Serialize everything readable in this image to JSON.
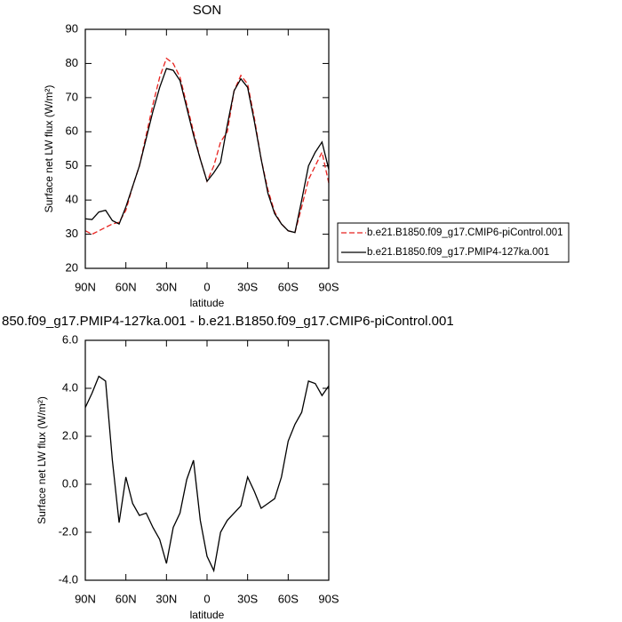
{
  "chart_data": [
    {
      "type": "line",
      "title": "SON",
      "x_label": "latitude",
      "y_label": "Surface net LW flux (W/m²)",
      "x": [
        90,
        85,
        80,
        75,
        70,
        65,
        60,
        55,
        50,
        45,
        40,
        35,
        30,
        25,
        20,
        15,
        10,
        5,
        0,
        -5,
        -10,
        -15,
        -20,
        -25,
        -30,
        -35,
        -40,
        -45,
        -50,
        -55,
        -60,
        -65,
        -70,
        -75,
        -80,
        -85,
        -90
      ],
      "xlim": [
        90,
        -90
      ],
      "xticks": [
        {
          "value": 90,
          "label": "90N"
        },
        {
          "value": 60,
          "label": "60N"
        },
        {
          "value": 30,
          "label": "30N"
        },
        0,
        {
          "value": -30,
          "label": "30S"
        },
        {
          "value": -60,
          "label": "60S"
        },
        {
          "value": -90,
          "label": "90S"
        }
      ],
      "ylim": [
        20,
        90
      ],
      "yticks": [
        20,
        30,
        40,
        50,
        60,
        70,
        80,
        90
      ],
      "legend": "right",
      "series": [
        {
          "name": "b.e21.B1850.f09_g17.CMIP6-piControl.001",
          "color": "#e8221e",
          "dashed": true,
          "values": [
            31,
            30,
            31,
            32,
            33,
            33.5,
            37,
            44,
            50,
            59,
            68,
            76,
            81.5,
            80,
            76,
            68,
            60,
            52,
            45.5,
            50,
            57,
            60,
            72,
            76.5,
            74,
            64,
            52,
            43,
            36.5,
            33,
            31,
            30.5,
            38,
            46,
            50,
            54,
            45
          ]
        },
        {
          "name": "b.e21.B1850.f09_g17.PMIP4-127ka.001",
          "color": "#000000",
          "dashed": false,
          "values": [
            34.5,
            34.3,
            36.5,
            37,
            34,
            33,
            38,
            44,
            50,
            58,
            66,
            73,
            78.5,
            78,
            75,
            67,
            59,
            52,
            45.5,
            48,
            51,
            62,
            72,
            75.5,
            73,
            63,
            52,
            42,
            36,
            33,
            31,
            30.5,
            40,
            50,
            54,
            57,
            49
          ]
        }
      ]
    },
    {
      "type": "line",
      "title": "850.f09_g17.PMIP4-127ka.001 - b.e21.B1850.f09_g17.CMIP6-piControl.001",
      "x_label": "latitude",
      "y_label": "Surface net LW flux (W/m²)",
      "x": [
        90,
        85,
        80,
        75,
        70,
        65,
        60,
        55,
        50,
        45,
        40,
        35,
        30,
        25,
        20,
        15,
        10,
        5,
        0,
        -5,
        -10,
        -15,
        -20,
        -25,
        -30,
        -35,
        -40,
        -45,
        -50,
        -55,
        -60,
        -65,
        -70,
        -75,
        -80,
        -85,
        -90
      ],
      "xlim": [
        90,
        -90
      ],
      "xticks": [
        {
          "value": 90,
          "label": "90N"
        },
        {
          "value": 60,
          "label": "60N"
        },
        {
          "value": 30,
          "label": "30N"
        },
        0,
        {
          "value": -30,
          "label": "30S"
        },
        {
          "value": -60,
          "label": "60S"
        },
        {
          "value": -90,
          "label": "90S"
        }
      ],
      "ylim": [
        -4,
        6
      ],
      "yticks": [
        {
          "value": -4,
          "label": "-4.0"
        },
        {
          "value": -2,
          "label": "-2.0"
        },
        {
          "value": 0,
          "label": "0.0"
        },
        {
          "value": 2,
          "label": "2.0"
        },
        {
          "value": 4,
          "label": "4.0"
        },
        {
          "value": 6,
          "label": "6.0"
        }
      ],
      "series": [
        {
          "color": "#000000",
          "dashed": false,
          "values": [
            3.2,
            3.8,
            4.5,
            4.3,
            1,
            -1.6,
            0.3,
            -0.8,
            -1.3,
            -1.2,
            -1.8,
            -2.3,
            -3.3,
            -1.8,
            -1.2,
            0.2,
            1,
            -1.5,
            -3,
            -3.6,
            -2,
            -1.5,
            -1.2,
            -0.9,
            0.3,
            -0.3,
            -1,
            -0.8,
            -0.6,
            0.3,
            1.8,
            2.5,
            3,
            4.3,
            4.2,
            3.7,
            4.1
          ]
        }
      ]
    }
  ]
}
